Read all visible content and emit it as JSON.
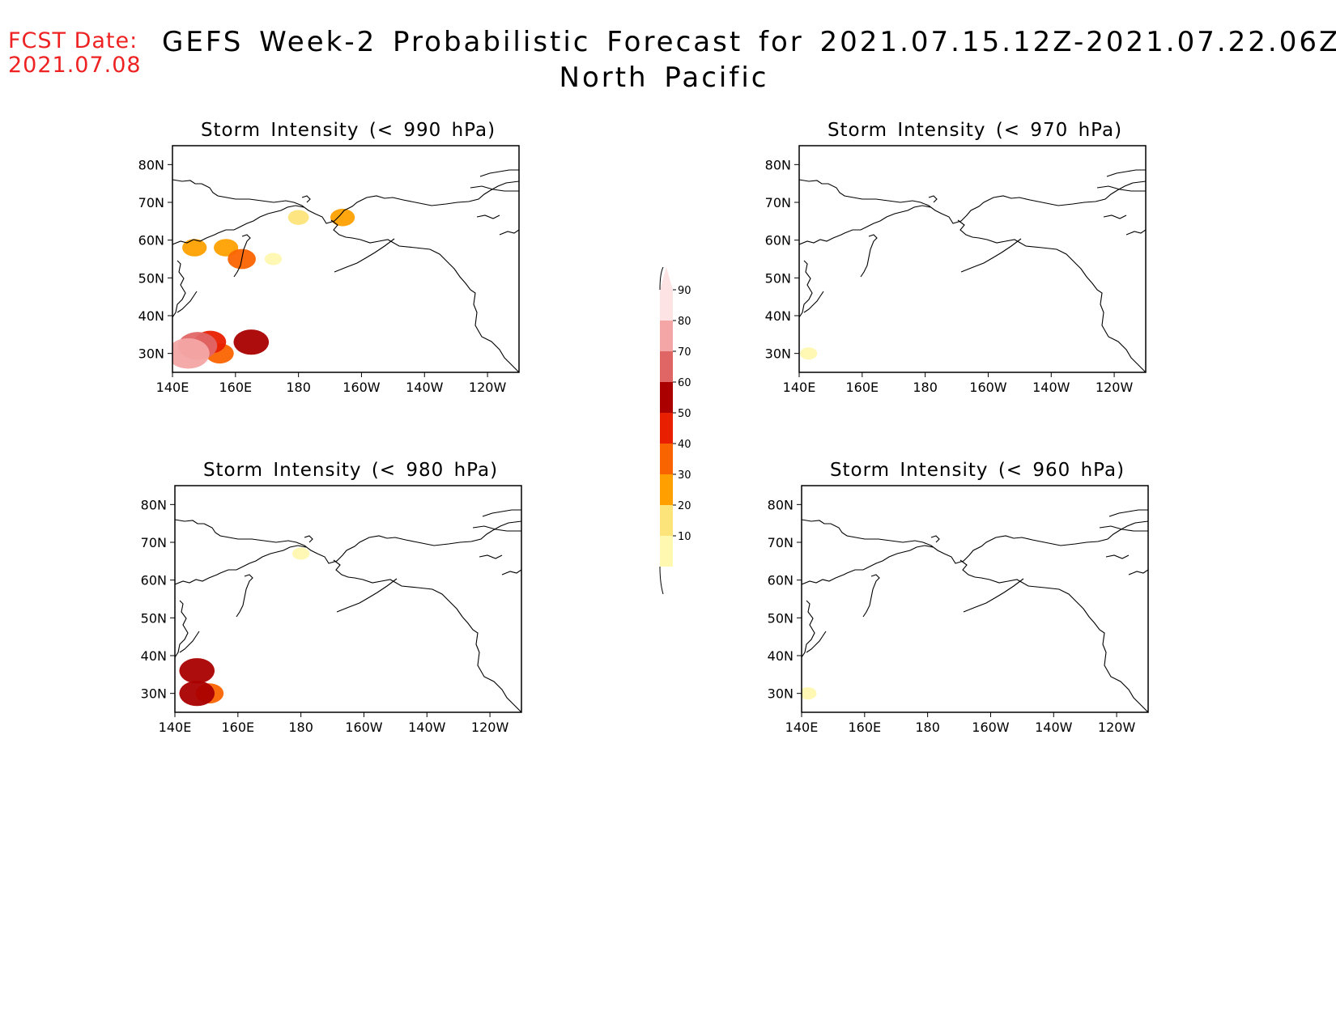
{
  "header": {
    "fcst_label": "FCST Date:",
    "fcst_date": "2021.07.08",
    "title_line1": "GEFS Week-2 Probabilistic Forecast for 2021.07.15.12Z-2021.07.22.06Z",
    "title_line2": "North Pacific"
  },
  "axes": {
    "lat_labels": [
      "80N",
      "70N",
      "60N",
      "50N",
      "40N",
      "30N"
    ],
    "lon_labels": [
      "140E",
      "160E",
      "180",
      "160W",
      "140W",
      "120W"
    ]
  },
  "panels": [
    {
      "title": "Storm Intensity (< 990 hPa)"
    },
    {
      "title": "Storm Intensity (< 970 hPa)"
    },
    {
      "title": "Storm Intensity (< 980 hPa)"
    },
    {
      "title": "Storm Intensity (< 960 hPa)"
    }
  ],
  "colorbar": {
    "labels": [
      "90",
      "80",
      "70",
      "60",
      "50",
      "40",
      "30",
      "20",
      "10"
    ],
    "colors": [
      "#fde3e3",
      "#f4a5a5",
      "#e06666",
      "#aa0000",
      "#e81f00",
      "#fa6400",
      "#ffa000",
      "#fde47a",
      "#fff8b0"
    ]
  },
  "chart_data": {
    "type": "heatmap",
    "lat_range": [
      25,
      85
    ],
    "lon_range": [
      140,
      250
    ],
    "levels": [
      10,
      20,
      30,
      40,
      50,
      60,
      70,
      80,
      90
    ],
    "maps": [
      {
        "threshold": "< 990 hPa",
        "areas": [
          {
            "lat": 30,
            "lon": 145,
            "prob": 80
          },
          {
            "lat": 32,
            "lon": 148,
            "prob": 70
          },
          {
            "lat": 33,
            "lon": 152,
            "prob": 50
          },
          {
            "lat": 30,
            "lon": 155,
            "prob": 40
          },
          {
            "lat": 33,
            "lon": 165,
            "prob": 60
          },
          {
            "lat": 58,
            "lon": 147,
            "prob": 30
          },
          {
            "lat": 58,
            "lon": 157,
            "prob": 30
          },
          {
            "lat": 55,
            "lon": 162,
            "prob": 40
          },
          {
            "lat": 55,
            "lon": 172,
            "prob": 10
          },
          {
            "lat": 66,
            "lon": 180,
            "prob": 20
          },
          {
            "lat": 66,
            "lon": 194,
            "prob": 30
          }
        ]
      },
      {
        "threshold": "< 970 hPa",
        "areas": [
          {
            "lat": 30,
            "lon": 143,
            "prob": 10
          }
        ]
      },
      {
        "threshold": "< 980 hPa",
        "areas": [
          {
            "lat": 36,
            "lon": 147,
            "prob": 60
          },
          {
            "lat": 30,
            "lon": 147,
            "prob": 60
          },
          {
            "lat": 30,
            "lon": 151,
            "prob": 40
          },
          {
            "lat": 67,
            "lon": 180,
            "prob": 10
          }
        ]
      },
      {
        "threshold": "< 960 hPa",
        "areas": [
          {
            "lat": 30,
            "lon": 142,
            "prob": 10
          }
        ]
      }
    ]
  }
}
